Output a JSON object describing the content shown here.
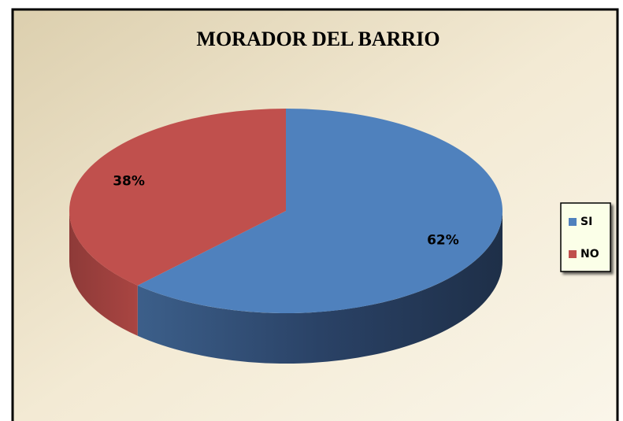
{
  "chart_data": {
    "type": "pie",
    "title": "MORADOR DEL BARRIO",
    "categories": [
      "SI",
      "NO"
    ],
    "values": [
      62,
      38
    ],
    "value_labels": [
      "62%",
      "38%"
    ],
    "colors": [
      "#4f81bd",
      "#c0504d"
    ],
    "legend": "right"
  }
}
